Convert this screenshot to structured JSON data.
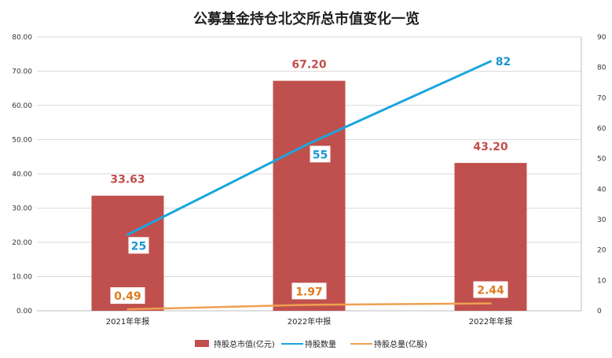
{
  "chart_data": {
    "type": "bar",
    "title": "公募基金持仓北交所总市值变化一览",
    "categories": [
      "2021年年报",
      "2022年中报",
      "2022年年报"
    ],
    "y_left": {
      "range": [
        0,
        80
      ],
      "ticks": [
        "0.00",
        "10.00",
        "20.00",
        "30.00",
        "40.00",
        "50.00",
        "60.00",
        "70.00",
        "80.00"
      ]
    },
    "y_right": {
      "range": [
        0,
        90
      ],
      "ticks": [
        "0",
        "10",
        "20",
        "30",
        "40",
        "50",
        "60",
        "70",
        "80",
        "90"
      ]
    },
    "grid": true,
    "legend_position": "bottom",
    "series": [
      {
        "name": "持股总市值(亿元)",
        "type": "bar",
        "axis": "left",
        "values": [
          33.63,
          67.2,
          43.2
        ],
        "labels": [
          "33.63",
          "67.20",
          "43.20"
        ],
        "color": "#c0504d"
      },
      {
        "name": "持股数量",
        "type": "line",
        "axis": "right",
        "values": [
          25,
          55,
          82
        ],
        "labels": [
          "25",
          "55",
          "82"
        ],
        "color": "#1aa5e0"
      },
      {
        "name": "持股总量(亿股)",
        "type": "line",
        "axis": "right",
        "values": [
          0.49,
          1.97,
          2.44
        ],
        "labels": [
          "0.49",
          "1.97",
          "2.44"
        ],
        "color": "#f0a050",
        "label_color": "#e07b20"
      }
    ]
  }
}
